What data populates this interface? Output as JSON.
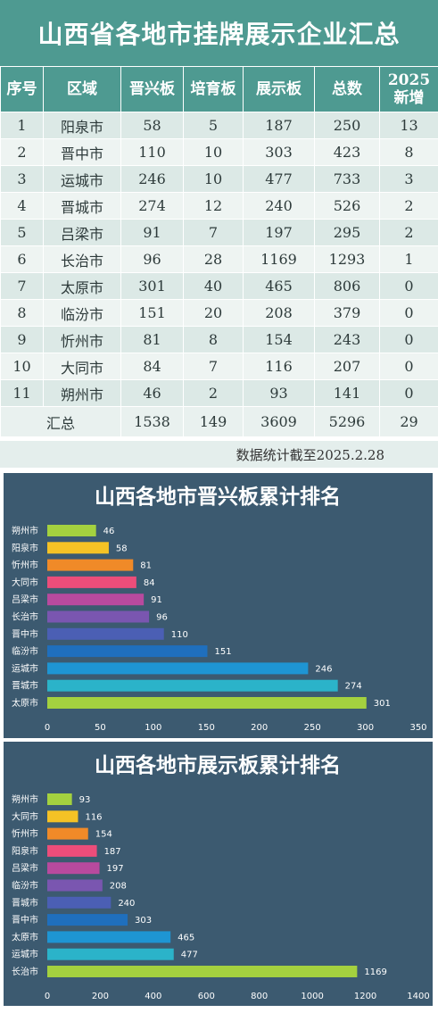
{
  "title": "山西省各地市挂牌展示企业汇总",
  "table": {
    "headers": [
      "序号",
      "区域",
      "晋兴板",
      "培育板",
      "展示板",
      "总数",
      "2025\n新增"
    ],
    "rows": [
      [
        "1",
        "阳泉市",
        "58",
        "5",
        "187",
        "250",
        "13"
      ],
      [
        "2",
        "晋中市",
        "110",
        "10",
        "303",
        "423",
        "8"
      ],
      [
        "3",
        "运城市",
        "246",
        "10",
        "477",
        "733",
        "3"
      ],
      [
        "4",
        "晋城市",
        "274",
        "12",
        "240",
        "526",
        "2"
      ],
      [
        "5",
        "吕梁市",
        "91",
        "7",
        "197",
        "295",
        "2"
      ],
      [
        "6",
        "长治市",
        "96",
        "28",
        "1169",
        "1293",
        "1"
      ],
      [
        "7",
        "太原市",
        "301",
        "40",
        "465",
        "806",
        "0"
      ],
      [
        "8",
        "临汾市",
        "151",
        "20",
        "208",
        "379",
        "0"
      ],
      [
        "9",
        "忻州市",
        "81",
        "8",
        "154",
        "243",
        "0"
      ],
      [
        "10",
        "大同市",
        "84",
        "7",
        "116",
        "207",
        "0"
      ],
      [
        "11",
        "朔州市",
        "46",
        "2",
        "93",
        "141",
        "0"
      ]
    ],
    "total": {
      "label": "汇总",
      "values": [
        "1538",
        "149",
        "3609",
        "5296",
        "29"
      ]
    },
    "note": "数据统计截至2025.2.28"
  },
  "colors": {
    "header_bg": "#4e9a91",
    "chart_bg": "#3c5a70",
    "bar_palette": [
      "#a4d13f",
      "#f5c225",
      "#f08a28",
      "#ec4d7a",
      "#b84a9e",
      "#7a56b0",
      "#4b5fb4",
      "#1f6fbd",
      "#1e95d3",
      "#2bb3c9",
      "#a4d13f"
    ]
  },
  "chart_data": [
    {
      "type": "bar",
      "orientation": "horizontal",
      "title": "山西各地市晋兴板累计排名",
      "categories": [
        "朔州市",
        "阳泉市",
        "忻州市",
        "大同市",
        "吕梁市",
        "长治市",
        "晋中市",
        "临汾市",
        "运城市",
        "晋城市",
        "太原市"
      ],
      "values": [
        46,
        58,
        81,
        84,
        91,
        96,
        110,
        151,
        246,
        274,
        301
      ],
      "xlim": [
        0,
        350
      ],
      "xticks": [
        0,
        50,
        100,
        150,
        200,
        250,
        300,
        350
      ],
      "grid": false
    },
    {
      "type": "bar",
      "orientation": "horizontal",
      "title": "山西各地市展示板累计排名",
      "categories": [
        "朔州市",
        "大同市",
        "忻州市",
        "阳泉市",
        "吕梁市",
        "临汾市",
        "晋城市",
        "晋中市",
        "太原市",
        "运城市",
        "长治市"
      ],
      "values": [
        93,
        116,
        154,
        187,
        197,
        208,
        240,
        303,
        465,
        477,
        1169
      ],
      "xlim": [
        0,
        1400
      ],
      "xticks": [
        0,
        200,
        400,
        600,
        800,
        1000,
        1200,
        1400
      ],
      "grid": false
    }
  ]
}
